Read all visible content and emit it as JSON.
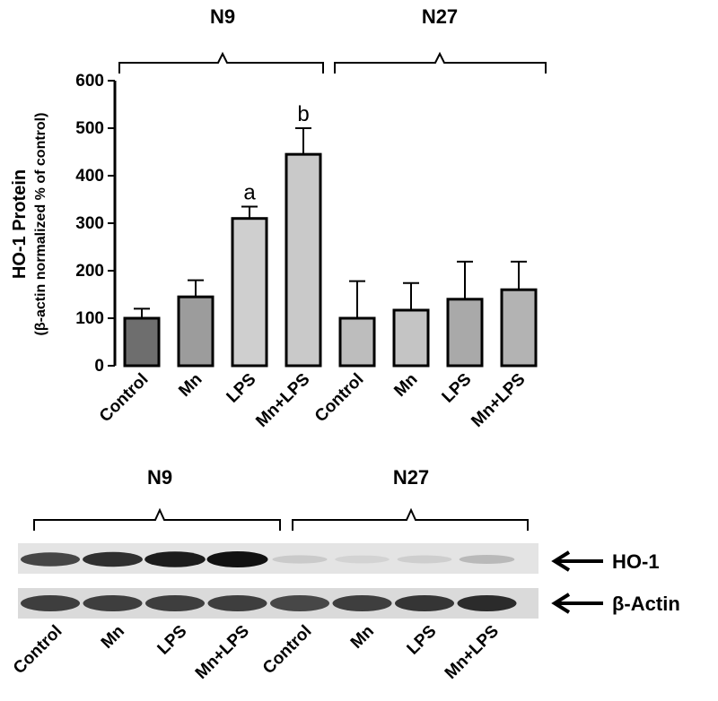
{
  "chart_data": {
    "type": "bar",
    "y_label": "HO-1 Protein",
    "y_sublabel": "(β-actin normalized % of control)",
    "groups": [
      "N9",
      "N27"
    ],
    "categories": [
      "Control",
      "Mn",
      "LPS",
      "Mn+LPS",
      "Control",
      "Mn",
      "LPS",
      "Mn+LPS"
    ],
    "values": [
      100,
      145,
      310,
      445,
      100,
      117,
      140,
      160
    ],
    "errors": [
      20,
      35,
      25,
      55,
      78,
      57,
      79,
      59
    ],
    "bar_labels": [
      null,
      null,
      "a",
      "b",
      null,
      null,
      null,
      null
    ],
    "colors": [
      "#6e6e6e",
      "#9c9c9c",
      "#cfcfcf",
      "#c9c9c9",
      "#bdbdbd",
      "#c4c4c4",
      "#a9a9a9",
      "#b3b3b3"
    ],
    "ylim": [
      0,
      600
    ],
    "yticks": [
      0,
      100,
      200,
      300,
      400,
      500,
      600
    ]
  },
  "blot": {
    "groups": [
      "N9",
      "N27"
    ],
    "bands": [
      "HO-1",
      "β-Actin"
    ],
    "lanes": [
      "Control",
      "Mn",
      "LPS",
      "Mn+LPS",
      "Control",
      "Mn",
      "LPS",
      "Mn+LPS"
    ]
  }
}
